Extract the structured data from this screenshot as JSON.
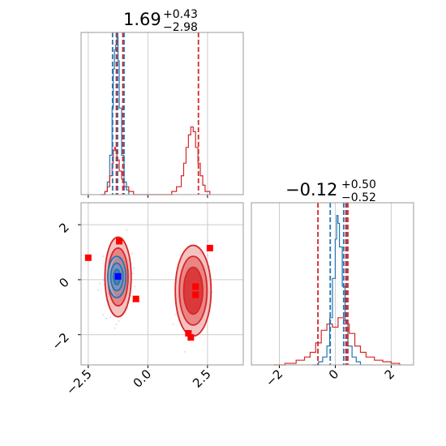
{
  "colors": {
    "blue": "#1f77b4",
    "red": "#d62728",
    "red_marker": "#ff0000",
    "blue_marker": "#0000ff",
    "grid": "#cccccc",
    "frame": "#999999"
  },
  "chart_data": [
    {
      "type": "histogram",
      "panel": "top-left",
      "title": {
        "value": "1.69",
        "upper": "+0.43",
        "lower": "−2.98"
      },
      "xlim": [
        -2.8,
        4.0
      ],
      "xticks": [
        -2.5,
        0.0,
        2.5
      ],
      "grid": true,
      "series": [
        {
          "color": "blue",
          "bins": [
            [
              -1.9,
              0.0
            ],
            [
              -1.8,
              0.02
            ],
            [
              -1.7,
              0.08
            ],
            [
              -1.6,
              0.25
            ],
            [
              -1.5,
              0.55
            ],
            [
              -1.45,
              0.8
            ],
            [
              -1.4,
              0.92
            ],
            [
              -1.35,
              0.95
            ],
            [
              -1.3,
              1.0
            ],
            [
              -1.25,
              0.85
            ],
            [
              -1.2,
              0.55
            ],
            [
              -1.1,
              0.25
            ],
            [
              -1.0,
              0.08
            ],
            [
              -0.9,
              0.03
            ],
            [
              -0.8,
              0.0
            ]
          ]
        },
        {
          "color": "red",
          "bins": [
            [
              -2.0,
              0.0
            ],
            [
              -1.8,
              0.02
            ],
            [
              -1.7,
              0.05
            ],
            [
              -1.6,
              0.12
            ],
            [
              -1.5,
              0.2
            ],
            [
              -1.45,
              0.28
            ],
            [
              -1.4,
              0.3
            ],
            [
              -1.35,
              0.28
            ],
            [
              -1.3,
              0.22
            ],
            [
              -1.2,
              0.15
            ],
            [
              -1.1,
              0.1
            ],
            [
              -1.0,
              0.05
            ],
            [
              -0.8,
              0.02
            ],
            [
              -0.6,
              0.0
            ],
            [
              0.8,
              0.0
            ],
            [
              1.0,
              0.02
            ],
            [
              1.2,
              0.05
            ],
            [
              1.4,
              0.12
            ],
            [
              1.5,
              0.2
            ],
            [
              1.6,
              0.3
            ],
            [
              1.7,
              0.38
            ],
            [
              1.8,
              0.43
            ],
            [
              1.9,
              0.4
            ],
            [
              2.0,
              0.3
            ],
            [
              2.1,
              0.2
            ],
            [
              2.2,
              0.12
            ],
            [
              2.3,
              0.06
            ],
            [
              2.4,
              0.02
            ],
            [
              2.6,
              0.0
            ]
          ]
        }
      ],
      "vlines": [
        {
          "x": -1.48,
          "color": "blue"
        },
        {
          "x": -1.27,
          "color": "blue"
        },
        {
          "x": -1.0,
          "color": "blue"
        },
        {
          "x": -1.32,
          "color": "red"
        },
        {
          "x": -1.05,
          "color": "red"
        },
        {
          "x": 2.12,
          "color": "red"
        }
      ]
    },
    {
      "type": "histogram",
      "panel": "bottom-right",
      "title": {
        "value": "−0.12",
        "upper": "+0.50",
        "lower": "−0.52"
      },
      "xlim": [
        -3.0,
        2.8
      ],
      "xticks": [
        -2,
        0,
        2
      ],
      "grid": true,
      "series": [
        {
          "color": "blue",
          "bins": [
            [
              -0.8,
              0.0
            ],
            [
              -0.6,
              0.02
            ],
            [
              -0.45,
              0.05
            ],
            [
              -0.3,
              0.12
            ],
            [
              -0.2,
              0.3
            ],
            [
              -0.1,
              0.55
            ],
            [
              0.0,
              0.8
            ],
            [
              0.05,
              0.95
            ],
            [
              0.1,
              0.9
            ],
            [
              0.15,
              0.75
            ],
            [
              0.25,
              0.5
            ],
            [
              0.35,
              0.28
            ],
            [
              0.45,
              0.12
            ],
            [
              0.6,
              0.05
            ],
            [
              0.75,
              0.02
            ],
            [
              0.9,
              0.0
            ]
          ]
        },
        {
          "color": "red",
          "bins": [
            [
              -2.2,
              0.0
            ],
            [
              -1.8,
              0.01
            ],
            [
              -1.4,
              0.03
            ],
            [
              -1.1,
              0.05
            ],
            [
              -0.9,
              0.08
            ],
            [
              -0.7,
              0.14
            ],
            [
              -0.5,
              0.22
            ],
            [
              -0.3,
              0.26
            ],
            [
              -0.1,
              0.24
            ],
            [
              0.1,
              0.3
            ],
            [
              0.3,
              0.26
            ],
            [
              0.5,
              0.2
            ],
            [
              0.7,
              0.12
            ],
            [
              0.9,
              0.08
            ],
            [
              1.1,
              0.05
            ],
            [
              1.4,
              0.03
            ],
            [
              1.7,
              0.02
            ],
            [
              2.0,
              0.01
            ],
            [
              2.3,
              0.0
            ]
          ]
        }
      ],
      "vlines": [
        {
          "x": -0.18,
          "color": "blue"
        },
        {
          "x": 0.3,
          "color": "blue"
        },
        {
          "x": 0.4,
          "color": "blue"
        },
        {
          "x": -0.62,
          "color": "red"
        },
        {
          "x": 0.38,
          "color": "red"
        },
        {
          "x": 0.45,
          "color": "red"
        }
      ]
    },
    {
      "type": "scatter",
      "panel": "bottom-left",
      "xlim": [
        -2.8,
        4.0
      ],
      "ylim": [
        -3.1,
        2.8
      ],
      "xticks": [
        -2.5,
        0.0,
        2.5
      ],
      "yticks": [
        -2,
        0,
        2
      ],
      "grid": true,
      "contours": [
        {
          "color": "red",
          "cx": -1.25,
          "cy": 0.1,
          "levels": [
            [
              0.55,
              1.45
            ],
            [
              0.42,
              1.05
            ],
            [
              0.28,
              0.68
            ]
          ]
        },
        {
          "color": "red",
          "cx": 1.9,
          "cy": -0.4,
          "levels": [
            [
              0.75,
              1.65
            ],
            [
              0.58,
              1.25
            ],
            [
              0.4,
              0.85
            ]
          ]
        },
        {
          "color": "blue",
          "cx": -1.3,
          "cy": 0.1,
          "levels": [
            [
              0.38,
              0.75
            ],
            [
              0.26,
              0.5
            ],
            [
              0.14,
              0.28
            ]
          ]
        }
      ],
      "red_points": [
        {
          "x": -2.5,
          "y": 0.8
        },
        {
          "x": -1.2,
          "y": 1.4
        },
        {
          "x": -0.5,
          "y": -0.7
        },
        {
          "x": 2.6,
          "y": 1.15
        },
        {
          "x": 2.0,
          "y": -0.25
        },
        {
          "x": 2.0,
          "y": -0.55
        },
        {
          "x": 1.7,
          "y": -1.95
        },
        {
          "x": 1.8,
          "y": -2.1
        }
      ],
      "blue_points": [
        {
          "x": -1.25,
          "y": 0.12
        }
      ]
    }
  ]
}
